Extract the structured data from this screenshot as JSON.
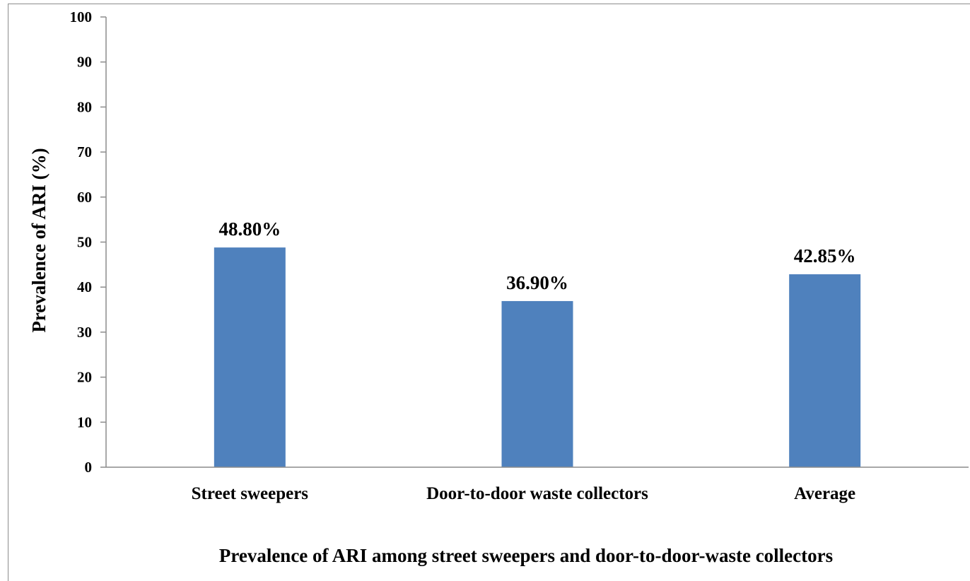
{
  "chart_data": {
    "type": "bar",
    "categories": [
      "Street sweepers",
      "Door-to-door waste collectors",
      "Average"
    ],
    "values": [
      48.8,
      36.9,
      42.85
    ],
    "data_labels": [
      "48.80%",
      "36.90%",
      "42.85%"
    ],
    "title": "",
    "xlabel": "Prevalence of ARI among street sweepers and door-to-door-waste  collectors",
    "ylabel": "Prevalence of ARI (%)",
    "ylim": [
      0,
      100
    ],
    "yticks": [
      0,
      10,
      20,
      30,
      40,
      50,
      60,
      70,
      80,
      90,
      100
    ],
    "grid": false,
    "legend": "none",
    "bar_color": "#4f81bd"
  }
}
